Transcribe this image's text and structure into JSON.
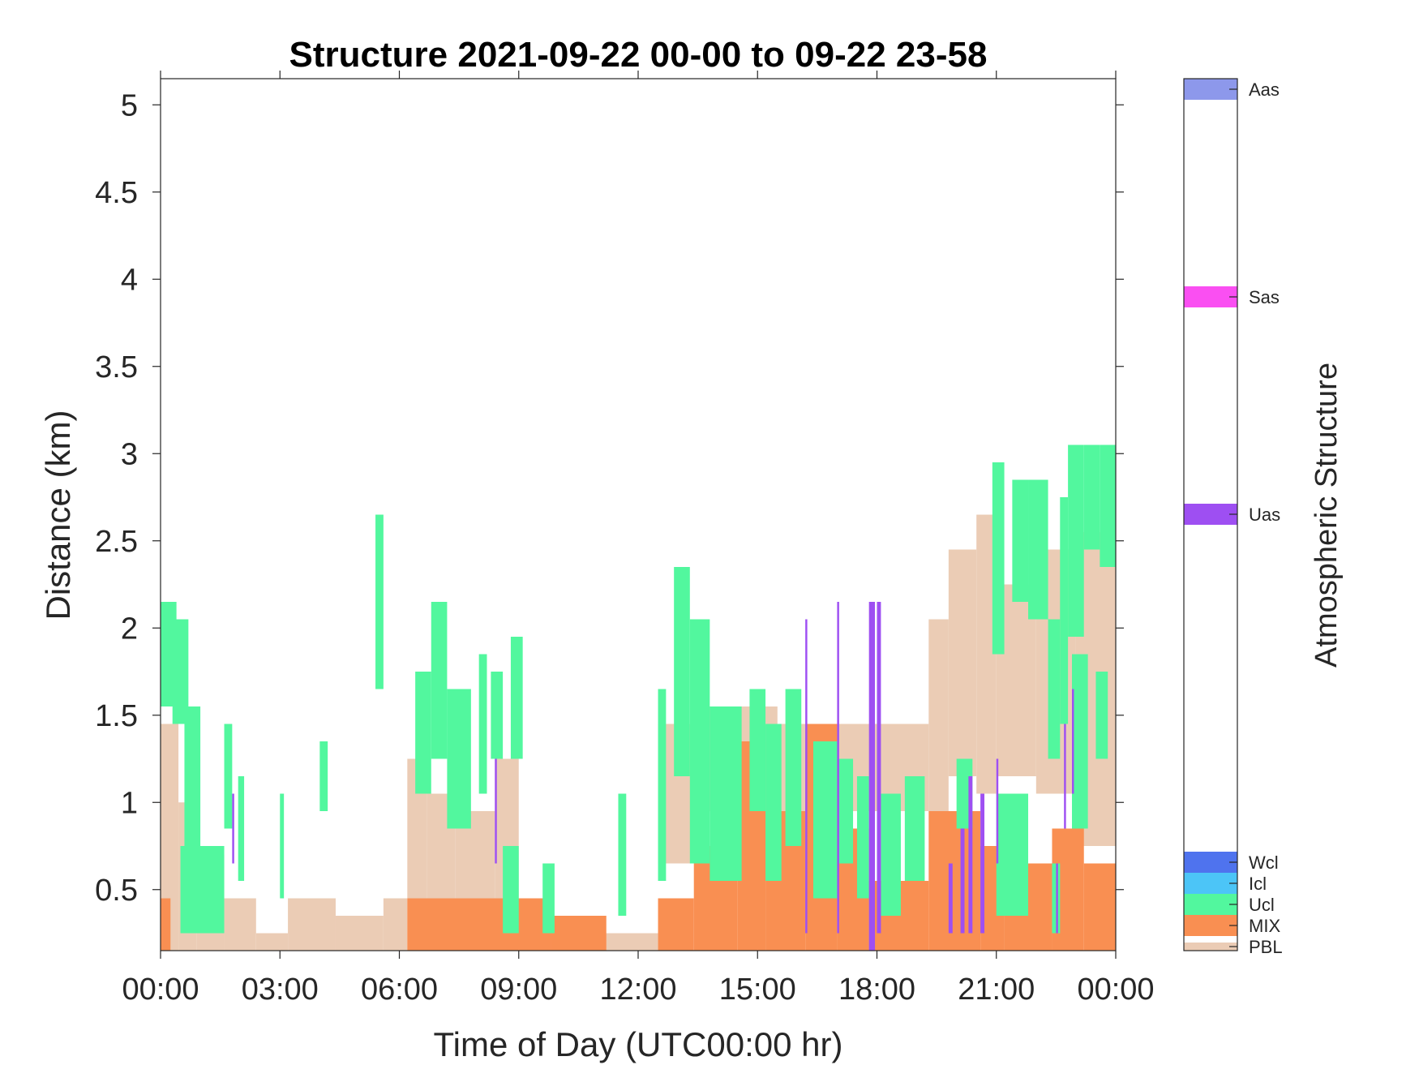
{
  "chart_data": {
    "type": "heatmap",
    "title": "Structure 2021-09-22 00-00 to 09-22 23-58",
    "xlabel": "Time of Day (UTC00:00 hr)",
    "ylabel": "Distance (km)",
    "xlim": [
      0,
      24
    ],
    "ylim": [
      0.15,
      5.15
    ],
    "xticks": [
      0,
      3,
      6,
      9,
      12,
      15,
      18,
      21,
      24
    ],
    "xtick_labels": [
      "00:00",
      "03:00",
      "06:00",
      "09:00",
      "12:00",
      "15:00",
      "18:00",
      "21:00",
      "00:00"
    ],
    "yticks": [
      0.5,
      1,
      1.5,
      2,
      2.5,
      3,
      3.5,
      4,
      4.5,
      5
    ],
    "ytick_labels": [
      "0.5",
      "1",
      "1.5",
      "2",
      "2.5",
      "3",
      "3.5",
      "4",
      "4.5",
      "5"
    ],
    "grid": false,
    "colorbar": {
      "title": "Atmospheric Structure",
      "categories": [
        {
          "label": "PBL",
          "color": "#EBCCB5"
        },
        {
          "label": "MIX",
          "color": "#F98F52"
        },
        {
          "label": "Ucl",
          "color": "#52F79E"
        },
        {
          "label": "Icl",
          "color": "#4CC5F7"
        },
        {
          "label": "Wcl",
          "color": "#4F73EE"
        },
        {
          "label": "Uas",
          "color": "#9E4FF2"
        },
        {
          "label": "Sas",
          "color": "#FA4FF2"
        },
        {
          "label": "Aas",
          "color": "#8D98EB"
        }
      ]
    },
    "series": [
      {
        "name": "PBL",
        "segments": [
          [
            0.0,
            0.45,
            0.15,
            1.45
          ],
          [
            0.45,
            0.9,
            0.15,
            1.0
          ],
          [
            0.9,
            1.6,
            0.15,
            0.7
          ],
          [
            1.6,
            2.4,
            0.15,
            0.45
          ],
          [
            2.4,
            3.2,
            0.15,
            0.25
          ],
          [
            3.2,
            4.4,
            0.15,
            0.45
          ],
          [
            4.4,
            5.6,
            0.15,
            0.35
          ],
          [
            5.6,
            6.2,
            0.15,
            0.45
          ],
          [
            6.2,
            6.7,
            0.45,
            1.25
          ],
          [
            6.7,
            7.4,
            0.45,
            1.05
          ],
          [
            7.4,
            8.4,
            0.45,
            0.95
          ],
          [
            8.4,
            9.0,
            0.45,
            1.25
          ],
          [
            9.0,
            12.5,
            0.15,
            0.25
          ],
          [
            12.5,
            13.5,
            0.65,
            1.45
          ],
          [
            13.5,
            15.5,
            0.95,
            1.55
          ],
          [
            15.5,
            19.3,
            0.95,
            1.45
          ],
          [
            19.3,
            19.8,
            0.95,
            2.05
          ],
          [
            19.8,
            20.5,
            1.15,
            2.45
          ],
          [
            20.5,
            21.0,
            1.05,
            2.65
          ],
          [
            21.0,
            22.0,
            1.15,
            2.25
          ],
          [
            22.0,
            23.0,
            1.05,
            2.45
          ],
          [
            23.0,
            24.0,
            0.75,
            2.55
          ]
        ]
      },
      {
        "name": "MIX",
        "segments": [
          [
            0.0,
            0.25,
            0.15,
            0.45
          ],
          [
            6.2,
            9.8,
            0.15,
            0.45
          ],
          [
            9.8,
            11.2,
            0.15,
            0.35
          ],
          [
            12.5,
            13.4,
            0.15,
            0.45
          ],
          [
            13.4,
            14.5,
            0.15,
            0.75
          ],
          [
            14.5,
            15.2,
            0.15,
            1.35
          ],
          [
            15.2,
            16.2,
            0.15,
            0.95
          ],
          [
            16.2,
            17.0,
            0.15,
            1.45
          ],
          [
            17.0,
            17.8,
            0.15,
            0.85
          ],
          [
            17.8,
            19.3,
            0.15,
            0.55
          ],
          [
            19.3,
            20.6,
            0.15,
            0.95
          ],
          [
            20.6,
            21.2,
            0.15,
            0.75
          ],
          [
            21.2,
            22.4,
            0.15,
            0.65
          ],
          [
            22.4,
            23.2,
            0.15,
            0.85
          ],
          [
            23.2,
            24.0,
            0.15,
            0.65
          ]
        ]
      },
      {
        "name": "Ucl",
        "segments": [
          [
            0.0,
            0.4,
            1.55,
            2.15
          ],
          [
            0.3,
            0.7,
            1.45,
            2.05
          ],
          [
            0.5,
            1.6,
            0.25,
            0.75
          ],
          [
            0.6,
            1.0,
            0.75,
            1.55
          ],
          [
            1.6,
            1.8,
            0.85,
            1.45
          ],
          [
            1.95,
            2.1,
            0.55,
            1.15
          ],
          [
            3.0,
            3.1,
            0.45,
            1.05
          ],
          [
            4.0,
            4.2,
            0.95,
            1.35
          ],
          [
            5.4,
            5.6,
            1.65,
            2.65
          ],
          [
            6.4,
            6.8,
            1.05,
            1.75
          ],
          [
            6.8,
            7.2,
            1.25,
            2.15
          ],
          [
            7.2,
            7.8,
            0.85,
            1.65
          ],
          [
            8.0,
            8.2,
            1.05,
            1.85
          ],
          [
            8.3,
            8.6,
            1.25,
            1.75
          ],
          [
            8.6,
            9.0,
            0.25,
            0.75
          ],
          [
            8.8,
            9.1,
            1.25,
            1.95
          ],
          [
            9.6,
            9.9,
            0.25,
            0.65
          ],
          [
            11.5,
            11.7,
            0.35,
            1.05
          ],
          [
            12.5,
            12.7,
            0.55,
            1.65
          ],
          [
            12.9,
            13.3,
            1.15,
            2.35
          ],
          [
            13.3,
            13.8,
            0.65,
            2.05
          ],
          [
            13.8,
            14.6,
            0.55,
            1.55
          ],
          [
            14.8,
            15.2,
            0.95,
            1.65
          ],
          [
            15.2,
            15.6,
            0.55,
            1.45
          ],
          [
            15.7,
            16.1,
            0.75,
            1.65
          ],
          [
            16.4,
            17.0,
            0.45,
            1.35
          ],
          [
            17.0,
            17.4,
            0.65,
            1.25
          ],
          [
            17.5,
            17.8,
            0.45,
            1.15
          ],
          [
            18.1,
            18.6,
            0.35,
            1.05
          ],
          [
            18.7,
            19.2,
            0.55,
            1.15
          ],
          [
            20.0,
            20.4,
            0.85,
            1.25
          ],
          [
            20.9,
            21.2,
            1.85,
            2.95
          ],
          [
            21.0,
            21.8,
            0.35,
            1.05
          ],
          [
            21.4,
            21.8,
            2.15,
            2.85
          ],
          [
            21.8,
            22.3,
            2.05,
            2.85
          ],
          [
            22.3,
            22.6,
            1.25,
            2.05
          ],
          [
            22.6,
            22.8,
            1.45,
            2.75
          ],
          [
            22.8,
            23.2,
            1.95,
            3.05
          ],
          [
            23.2,
            23.6,
            2.45,
            3.05
          ],
          [
            23.6,
            24.0,
            2.35,
            3.05
          ],
          [
            22.9,
            23.3,
            0.85,
            1.85
          ],
          [
            23.5,
            23.8,
            1.25,
            1.75
          ],
          [
            22.4,
            22.6,
            0.25,
            0.65
          ]
        ]
      },
      {
        "name": "Uas",
        "segments": [
          [
            1.8,
            1.85,
            0.65,
            1.05
          ],
          [
            8.4,
            8.45,
            0.65,
            1.25
          ],
          [
            16.2,
            16.25,
            0.25,
            2.05
          ],
          [
            17.0,
            17.05,
            0.25,
            2.15
          ],
          [
            17.8,
            17.95,
            0.15,
            2.15
          ],
          [
            18.0,
            18.1,
            0.25,
            2.15
          ],
          [
            19.8,
            19.9,
            0.25,
            0.65
          ],
          [
            20.1,
            20.2,
            0.25,
            0.85
          ],
          [
            20.3,
            20.4,
            0.25,
            1.15
          ],
          [
            20.6,
            20.7,
            0.25,
            1.05
          ],
          [
            21.0,
            21.05,
            0.65,
            1.25
          ],
          [
            22.5,
            22.55,
            0.25,
            0.65
          ],
          [
            22.7,
            22.75,
            0.85,
            1.45
          ],
          [
            22.9,
            22.95,
            1.05,
            1.65
          ]
        ]
      }
    ]
  }
}
